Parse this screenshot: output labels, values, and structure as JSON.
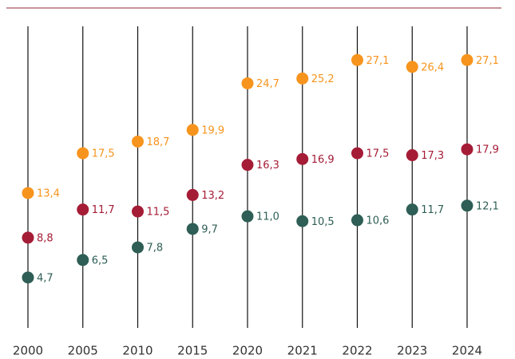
{
  "chart_data": {
    "type": "dot",
    "categories": [
      "2000",
      "2005",
      "2010",
      "2015",
      "2020",
      "2021",
      "2022",
      "2023",
      "2024"
    ],
    "ylim": [
      0,
      30
    ],
    "series": [
      {
        "color": "#f7941d",
        "values": [
          13.4,
          17.5,
          18.7,
          19.9,
          24.7,
          25.2,
          27.1,
          26.4,
          27.1
        ],
        "value_labels": [
          "13,4",
          "17,5",
          "18,7",
          "19,9",
          "24,7",
          "25,2",
          "27,1",
          "26,4",
          "27,1"
        ]
      },
      {
        "color": "#a51c36",
        "values": [
          8.8,
          11.7,
          11.5,
          13.2,
          16.3,
          16.9,
          17.5,
          17.3,
          17.9
        ],
        "value_labels": [
          "8,8",
          "11,7",
          "11,5",
          "13,2",
          "16,3",
          "16,9",
          "17,5",
          "17,3",
          "17,9"
        ]
      },
      {
        "color": "#2e5e55",
        "values": [
          4.7,
          6.5,
          7.8,
          9.7,
          11.0,
          10.5,
          10.6,
          11.7,
          12.1
        ],
        "value_labels": [
          "4,7",
          "6,5",
          "7,8",
          "9,7",
          "11,0",
          "10,5",
          "10,6",
          "11,7",
          "12,1"
        ]
      }
    ]
  }
}
